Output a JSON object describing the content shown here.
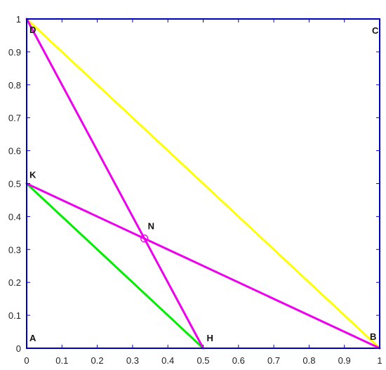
{
  "chart_data": {
    "type": "line",
    "xlim": [
      0,
      1
    ],
    "ylim": [
      0,
      1
    ],
    "grid": false,
    "xticks": [
      "0",
      "0.1",
      "0.2",
      "0.3",
      "0.4",
      "0.5",
      "0.6",
      "0.7",
      "0.8",
      "0.9",
      "1"
    ],
    "yticks": [
      "0",
      "0.1",
      "0.2",
      "0.3",
      "0.4",
      "0.5",
      "0.6",
      "0.7",
      "0.8",
      "0.9",
      "1"
    ],
    "xtick_values": [
      0,
      0.1,
      0.2,
      0.3,
      0.4,
      0.5,
      0.6,
      0.7,
      0.8,
      0.9,
      1
    ],
    "ytick_values": [
      0,
      0.1,
      0.2,
      0.3,
      0.4,
      0.5,
      0.6,
      0.7,
      0.8,
      0.9,
      1
    ],
    "points": [
      {
        "label": "A",
        "x": 0,
        "y": 0
      },
      {
        "label": "B",
        "x": 1,
        "y": 0
      },
      {
        "label": "C",
        "x": 1,
        "y": 1
      },
      {
        "label": "D",
        "x": 0,
        "y": 1
      },
      {
        "label": "K",
        "x": 0,
        "y": 0.5
      },
      {
        "label": "H",
        "x": 0.5,
        "y": 0
      },
      {
        "label": "N",
        "x": 0.3333,
        "y": 0.3333
      }
    ],
    "segments": [
      {
        "from": "D",
        "to": "B",
        "color": "#ffff00"
      },
      {
        "from": "K",
        "to": "H",
        "color": "#00ee00"
      },
      {
        "from": "D",
        "to": "H",
        "color": "#ee00ee"
      },
      {
        "from": "K",
        "to": "B",
        "color": "#ee00ee"
      }
    ],
    "frame_color": "#0000bb",
    "marker": {
      "at": "N",
      "shape": "circle",
      "color": "#ee00ee"
    }
  }
}
